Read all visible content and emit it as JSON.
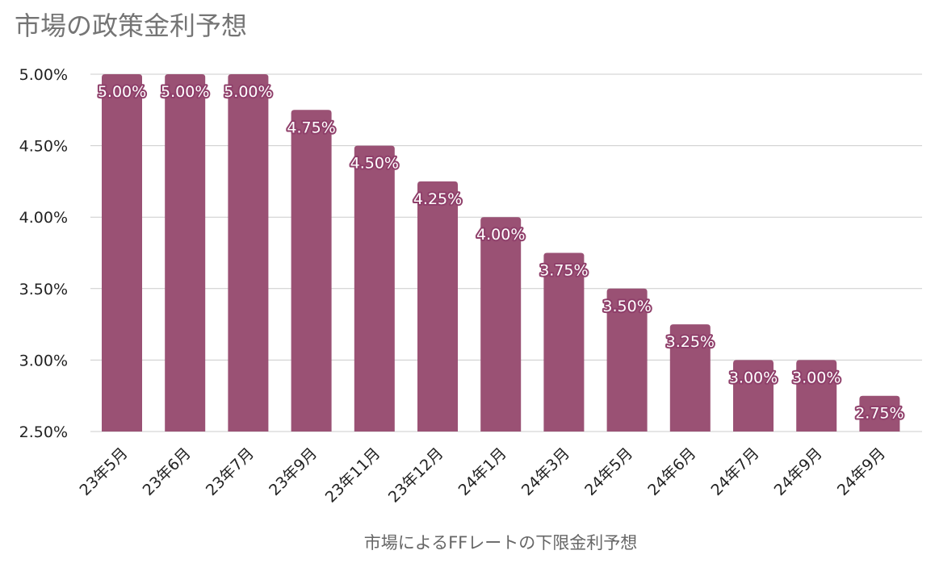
{
  "chart_data": {
    "type": "bar",
    "title": "市場の政策金利予想",
    "xlabel": "市場によるFFレートの下限金利予想",
    "ylabel": "",
    "categories": [
      "23年5月",
      "23年6月",
      "23年7月",
      "23年9月",
      "23年11月",
      "23年12月",
      "24年1月",
      "24年3月",
      "24年5月",
      "24年6月",
      "24年7月",
      "24年9月",
      "24年9月"
    ],
    "series": [
      {
        "values": [
          5.0,
          5.0,
          5.0,
          4.75,
          4.5,
          4.25,
          4.0,
          3.75,
          3.5,
          3.25,
          3.0,
          3.0,
          2.75
        ],
        "labels": [
          "5.00%",
          "5.00%",
          "5.00%",
          "4.75%",
          "4.50%",
          "4.25%",
          "4.00%",
          "3.75%",
          "3.50%",
          "3.25%",
          "3.00%",
          "3.00%",
          "2.75%"
        ]
      }
    ],
    "ylim": [
      2.5,
      5.0
    ],
    "yticks": [
      {
        "value": 2.5,
        "label": "2.50%"
      },
      {
        "value": 3.0,
        "label": "3.00%"
      },
      {
        "value": 3.5,
        "label": "3.50%"
      },
      {
        "value": 4.0,
        "label": "4.00%"
      },
      {
        "value": 4.5,
        "label": "4.50%"
      },
      {
        "value": 5.0,
        "label": "5.00%"
      }
    ],
    "grid": true,
    "legend": "none",
    "colors": {
      "bar": "#9a5174",
      "grid": "#cccccc",
      "title": "#757575",
      "axis_text": "#222222",
      "axis_title": "#666666"
    }
  }
}
